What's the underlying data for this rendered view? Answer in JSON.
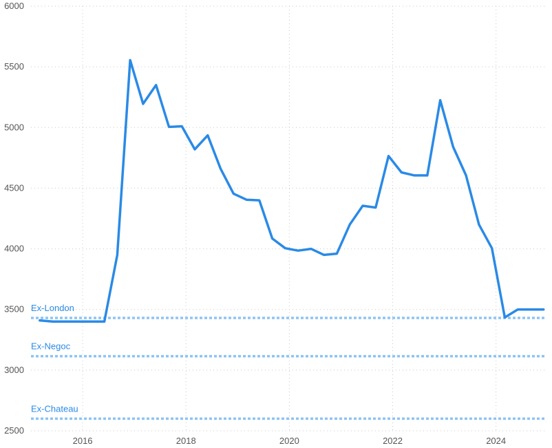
{
  "chart_data": {
    "type": "line",
    "title": "",
    "xlabel": "",
    "ylabel": "",
    "xlim": [
      2015.0,
      2024.95
    ],
    "ylim": [
      2500,
      6000
    ],
    "y_ticks": [
      2500,
      3000,
      3500,
      4000,
      4500,
      5000,
      5500,
      6000
    ],
    "x_ticks": [
      2016,
      2018,
      2020,
      2022,
      2024
    ],
    "grid": true,
    "series": [
      {
        "color": "#2a8ae6",
        "x": [
          2015.17,
          2015.42,
          2015.67,
          2015.92,
          2016.17,
          2016.42,
          2016.67,
          2016.92,
          2017.17,
          2017.42,
          2017.67,
          2017.92,
          2018.17,
          2018.42,
          2018.67,
          2018.92,
          2019.17,
          2019.42,
          2019.67,
          2019.92,
          2020.17,
          2020.42,
          2020.67,
          2020.92,
          2021.17,
          2021.42,
          2021.67,
          2021.92,
          2022.17,
          2022.42,
          2022.67,
          2022.92,
          2023.17,
          2023.42,
          2023.67,
          2023.92,
          2024.17,
          2024.42,
          2024.67,
          2024.92
        ],
        "y": [
          3410,
          3400,
          3400,
          3400,
          3400,
          3400,
          3950,
          5555,
          5195,
          5350,
          5005,
          5010,
          4820,
          4935,
          4660,
          4455,
          4405,
          4400,
          4085,
          4005,
          3985,
          4000,
          3950,
          3960,
          4200,
          4355,
          4340,
          4765,
          4630,
          4605,
          4605,
          5225,
          4840,
          4605,
          4200,
          4005,
          3435,
          3500,
          3500,
          3500
        ]
      }
    ],
    "reference_lines": [
      {
        "label": "Ex-London",
        "value": 3430,
        "color": "#8ec3f2",
        "label_color": "#2a8ae6"
      },
      {
        "label": "Ex-Negoc",
        "value": 3115,
        "color": "#8ec3f2",
        "label_color": "#2a8ae6"
      },
      {
        "label": "Ex-Chateau",
        "value": 2600,
        "color": "#8ec3f2",
        "label_color": "#2a8ae6"
      }
    ]
  }
}
